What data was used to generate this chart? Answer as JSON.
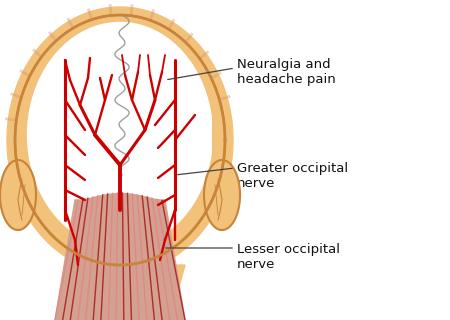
{
  "background_color": "#ffffff",
  "skin_color": "#F2C27A",
  "skin_outline_color": "#C8843A",
  "skin_dark": "#D4956A",
  "nerve_color": "#CC0000",
  "nerve_dark": "#880000",
  "muscle_base": "#D4A090",
  "muscle_stripe_dark": "#AA2020",
  "muscle_stripe_mid": "#CC4040",
  "muscle_stripe_light": "#DD8888",
  "scalp_white": "#FFFFFF",
  "suture_color": "#888888",
  "hair_color": "#C8843A",
  "label1": "Neuralgia and\nheadache pain",
  "label2": "Greater occipital\nnerve",
  "label3": "Lesser occipital\nnerve",
  "label_color": "#111111",
  "label_fontsize": 9.5,
  "line_color": "#444444"
}
